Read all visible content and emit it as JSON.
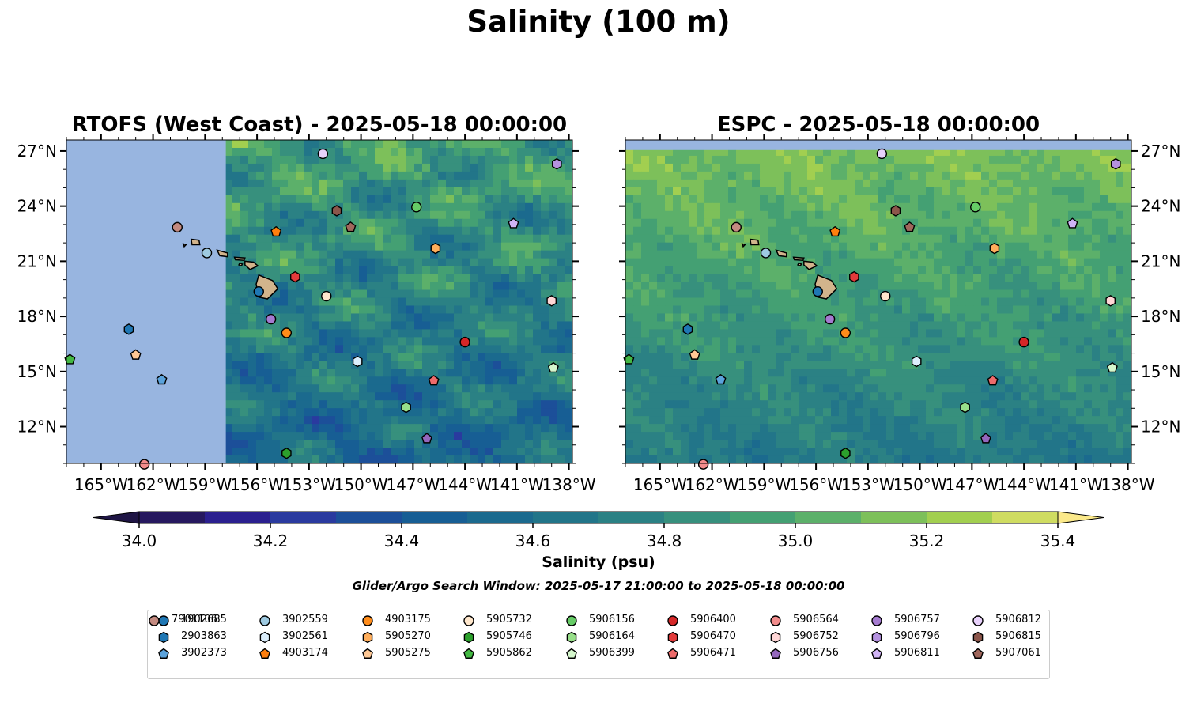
{
  "title": "Salinity (100 m)",
  "colorbar": {
    "label": "Salinity (psu)",
    "ticks": [
      "34.0",
      "34.2",
      "34.4",
      "34.6",
      "34.8",
      "35.0",
      "35.2",
      "35.4"
    ],
    "range": [
      34.0,
      35.4
    ],
    "levels": [
      34.0,
      34.1,
      34.2,
      34.3,
      34.4,
      34.5,
      34.6,
      34.7,
      34.8,
      34.9,
      35.0,
      35.1,
      35.2,
      35.3,
      35.4
    ],
    "colors": [
      "#26185f",
      "#2b1f8f",
      "#2a3a9f",
      "#1c4f99",
      "#175e94",
      "#1b6a8e",
      "#227589",
      "#2b8184",
      "#37907d",
      "#44a073",
      "#5cb06a",
      "#7dc05a",
      "#a2cf50",
      "#cfdc61"
    ],
    "under_color": "#1f1545",
    "over_color": "#fbe98a"
  },
  "search_window": "Glider/Argo Search Window: 2025-05-17 21:00:00 to 2025-05-18 00:00:00",
  "chart_data": [
    {
      "type": "scatter",
      "title": "RTOFS (West Coast) - 2025-05-18 00:00:00",
      "xlabel": "",
      "ylabel": "",
      "xlim": [
        -167,
        -137.8
      ],
      "ylim": [
        10,
        27.6
      ],
      "x_ticks": [
        "165°W",
        "162°W",
        "159°W",
        "156°W",
        "153°W",
        "150°W",
        "147°W",
        "144°W",
        "141°W",
        "138°W"
      ],
      "x_tick_values": [
        -165,
        -162,
        -159,
        -156,
        -153,
        -150,
        -147,
        -144,
        -141,
        -138
      ],
      "y_ticks": [
        "12°N",
        "15°N",
        "18°N",
        "21°N",
        "24°N",
        "27°N"
      ],
      "y_tick_values": [
        12,
        15,
        18,
        21,
        24,
        27
      ],
      "y_tick_side": "left",
      "missing_data_west_of_lon": -157.8,
      "missing_color": "#98b5e0",
      "land_color": "#d2b48c"
    },
    {
      "type": "scatter",
      "title": "ESPC - 2025-05-18 00:00:00",
      "xlabel": "",
      "ylabel": "",
      "xlim": [
        -167,
        -137.8
      ],
      "ylim": [
        10,
        27.6
      ],
      "x_ticks": [
        "165°W",
        "162°W",
        "159°W",
        "156°W",
        "153°W",
        "150°W",
        "147°W",
        "144°W",
        "141°W",
        "138°W"
      ],
      "x_tick_values": [
        -165,
        -162,
        -159,
        -156,
        -153,
        -150,
        -147,
        -144,
        -141,
        -138
      ],
      "y_ticks": [
        "12°N",
        "15°N",
        "18°N",
        "21°N",
        "24°N",
        "27°N"
      ],
      "y_tick_values": [
        12,
        15,
        18,
        21,
        24,
        27
      ],
      "y_tick_side": "right",
      "missing_north_of_lat": 27.05,
      "missing_color": "#98b5e0",
      "land_color": "#d2b48c"
    }
  ],
  "floats": [
    {
      "id": "1902685",
      "marker": "circle",
      "color": "#1f77b4",
      "lon": -155.9,
      "lat": 19.35
    },
    {
      "id": "2903863",
      "marker": "hexagon",
      "color": "#1f77b4",
      "lon": -163.4,
      "lat": 17.3
    },
    {
      "id": "3902373",
      "marker": "pentagon",
      "color": "#5ba3dc",
      "lon": -161.5,
      "lat": 14.55
    },
    {
      "id": "3902559",
      "marker": "circle",
      "color": "#9ecae1",
      "lon": -158.9,
      "lat": 21.45
    },
    {
      "id": "3902561",
      "marker": "hexagon",
      "color": "#dbeefc",
      "lon": -150.2,
      "lat": 15.55
    },
    {
      "id": "4903174",
      "marker": "pentagon",
      "color": "#ff7f0e",
      "lon": -154.9,
      "lat": 22.6
    },
    {
      "id": "4903175",
      "marker": "circle",
      "color": "#ff8c1a",
      "lon": -154.3,
      "lat": 17.1
    },
    {
      "id": "5905270",
      "marker": "hexagon",
      "color": "#ffae5c",
      "lon": -145.7,
      "lat": 21.7
    },
    {
      "id": "5905275",
      "marker": "pentagon",
      "color": "#ffc895",
      "lon": -163.0,
      "lat": 15.9
    },
    {
      "id": "5905732",
      "marker": "circle",
      "color": "#ffe7cc",
      "lon": -152.0,
      "lat": 19.1
    },
    {
      "id": "5905746",
      "marker": "hexagon",
      "color": "#2ca02c",
      "lon": -154.3,
      "lat": 10.55
    },
    {
      "id": "5905862",
      "marker": "pentagon",
      "color": "#43b843",
      "lon": -166.8,
      "lat": 15.65
    },
    {
      "id": "5906156",
      "marker": "circle",
      "color": "#66cc66",
      "lon": -146.8,
      "lat": 23.95
    },
    {
      "id": "5906164",
      "marker": "hexagon",
      "color": "#98df8a",
      "lon": -147.4,
      "lat": 13.05
    },
    {
      "id": "5906399",
      "marker": "pentagon",
      "color": "#d5f7cc",
      "lon": -138.9,
      "lat": 15.2
    },
    {
      "id": "5906400",
      "marker": "circle",
      "color": "#d62728",
      "lon": -144.0,
      "lat": 16.6
    },
    {
      "id": "5906470",
      "marker": "hexagon",
      "color": "#e33b3b",
      "lon": -153.8,
      "lat": 20.15
    },
    {
      "id": "5906471",
      "marker": "pentagon",
      "color": "#ee6b6b",
      "lon": -145.8,
      "lat": 14.5
    },
    {
      "id": "5906564",
      "marker": "circle",
      "color": "#f28c8c",
      "lon": -162.5,
      "lat": 9.95
    },
    {
      "id": "5906752",
      "marker": "hexagon",
      "color": "#ffd6d6",
      "lon": -139.0,
      "lat": 18.85
    },
    {
      "id": "5906756",
      "marker": "pentagon",
      "color": "#9467bd",
      "lon": -146.2,
      "lat": 11.35
    },
    {
      "id": "5906757",
      "marker": "circle",
      "color": "#a57bd0",
      "lon": -155.2,
      "lat": 17.85
    },
    {
      "id": "5906796",
      "marker": "hexagon",
      "color": "#b592e0",
      "lon": -138.7,
      "lat": 26.3
    },
    {
      "id": "5906811",
      "marker": "pentagon",
      "color": "#d0b3f5",
      "lon": -141.2,
      "lat": 23.05
    },
    {
      "id": "5906812",
      "marker": "circle",
      "color": "#e8d1fb",
      "lon": -152.2,
      "lat": 26.85
    },
    {
      "id": "5906815",
      "marker": "hexagon",
      "color": "#8c564b",
      "lon": -151.4,
      "lat": 23.75
    },
    {
      "id": "5907061",
      "marker": "pentagon",
      "color": "#a0675c",
      "lon": -150.6,
      "lat": 22.85
    },
    {
      "id": "7901106",
      "marker": "circle",
      "color": "#c48a80",
      "lon": -160.6,
      "lat": 22.85
    }
  ]
}
